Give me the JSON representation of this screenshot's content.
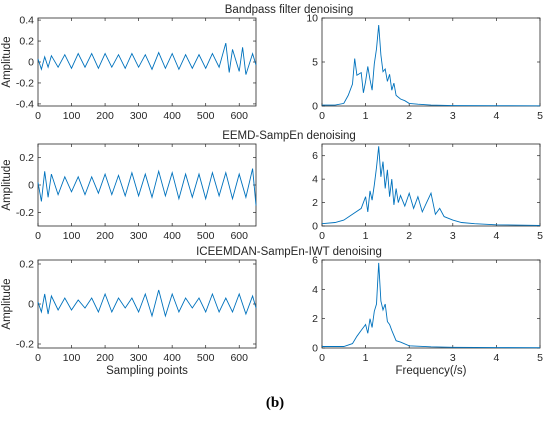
{
  "caption": "(b)",
  "chart_data": [
    {
      "type": "line",
      "title": "Bandpass filter denoising",
      "xlabel": "",
      "ylabel": "Amplitude",
      "xlim": [
        0,
        650
      ],
      "ylim": [
        -0.42,
        0.42
      ],
      "xticks": [
        "0",
        "100",
        "200",
        "300",
        "400",
        "500",
        "600"
      ],
      "yticks": [
        "0.4",
        "0.2",
        "0",
        "-0.2",
        "-0.4"
      ],
      "color": "#0072BD",
      "series": [
        {
          "values": [
            [
              0,
              0.03
            ],
            [
              10,
              -0.07
            ],
            [
              20,
              0.05
            ],
            [
              30,
              -0.05
            ],
            [
              40,
              0.06
            ],
            [
              60,
              -0.05
            ],
            [
              80,
              0.07
            ],
            [
              100,
              -0.06
            ],
            [
              120,
              0.08
            ],
            [
              140,
              -0.05
            ],
            [
              160,
              0.08
            ],
            [
              180,
              -0.06
            ],
            [
              200,
              0.08
            ],
            [
              220,
              -0.05
            ],
            [
              240,
              0.07
            ],
            [
              260,
              -0.06
            ],
            [
              280,
              0.08
            ],
            [
              300,
              -0.05
            ],
            [
              320,
              0.07
            ],
            [
              340,
              -0.07
            ],
            [
              360,
              0.09
            ],
            [
              380,
              -0.06
            ],
            [
              400,
              0.08
            ],
            [
              420,
              -0.07
            ],
            [
              440,
              0.07
            ],
            [
              460,
              -0.06
            ],
            [
              480,
              0.07
            ],
            [
              500,
              -0.06
            ],
            [
              520,
              0.08
            ],
            [
              540,
              -0.05
            ],
            [
              560,
              0.18
            ],
            [
              570,
              -0.1
            ],
            [
              580,
              0.12
            ],
            [
              600,
              -0.09
            ],
            [
              610,
              0.14
            ],
            [
              620,
              -0.12
            ],
            [
              640,
              0.08
            ],
            [
              650,
              -0.03
            ]
          ]
        }
      ]
    },
    {
      "type": "line",
      "title": "",
      "xlabel": "",
      "ylabel": "",
      "xlim": [
        0,
        5
      ],
      "ylim": [
        0,
        10
      ],
      "xticks": [
        "0",
        "1",
        "2",
        "3",
        "4",
        "5"
      ],
      "yticks": [
        "10",
        "5",
        "0"
      ],
      "color": "#0072BD",
      "series": [
        {
          "values": [
            [
              0,
              0.1
            ],
            [
              0.3,
              0.1
            ],
            [
              0.5,
              0.3
            ],
            [
              0.6,
              1.2
            ],
            [
              0.7,
              2.5
            ],
            [
              0.75,
              5.4
            ],
            [
              0.8,
              3.5
            ],
            [
              0.9,
              3.8
            ],
            [
              0.95,
              1.5
            ],
            [
              1.0,
              2.8
            ],
            [
              1.05,
              4.5
            ],
            [
              1.1,
              3.0
            ],
            [
              1.15,
              1.8
            ],
            [
              1.2,
              4.8
            ],
            [
              1.25,
              6.5
            ],
            [
              1.3,
              9.2
            ],
            [
              1.35,
              5.8
            ],
            [
              1.4,
              3.9
            ],
            [
              1.45,
              4.2
            ],
            [
              1.5,
              2.8
            ],
            [
              1.55,
              3.6
            ],
            [
              1.6,
              1.8
            ],
            [
              1.65,
              2.6
            ],
            [
              1.7,
              1.2
            ],
            [
              1.8,
              0.8
            ],
            [
              1.9,
              0.6
            ],
            [
              2.0,
              0.3
            ],
            [
              2.2,
              0.2
            ],
            [
              2.5,
              0.1
            ],
            [
              3.0,
              0.05
            ],
            [
              4.0,
              0.03
            ],
            [
              5.0,
              0.02
            ]
          ]
        }
      ]
    },
    {
      "type": "line",
      "title": "EEMD-SampEn denoising",
      "xlabel": "",
      "ylabel": "Amplitude",
      "xlim": [
        0,
        650
      ],
      "ylim": [
        -0.3,
        0.3
      ],
      "xticks": [
        "0",
        "100",
        "200",
        "300",
        "400",
        "500",
        "600"
      ],
      "yticks": [
        "0.2",
        "0",
        "-0.2"
      ],
      "color": "#0072BD",
      "series": [
        {
          "values": [
            [
              0,
              0.02
            ],
            [
              10,
              -0.12
            ],
            [
              20,
              0.1
            ],
            [
              30,
              -0.09
            ],
            [
              40,
              0.08
            ],
            [
              60,
              -0.07
            ],
            [
              80,
              0.06
            ],
            [
              100,
              -0.05
            ],
            [
              120,
              0.06
            ],
            [
              140,
              -0.07
            ],
            [
              160,
              0.06
            ],
            [
              180,
              -0.06
            ],
            [
              200,
              0.08
            ],
            [
              220,
              -0.07
            ],
            [
              240,
              0.07
            ],
            [
              260,
              -0.08
            ],
            [
              280,
              0.09
            ],
            [
              300,
              -0.08
            ],
            [
              320,
              0.08
            ],
            [
              340,
              -0.09
            ],
            [
              360,
              0.1
            ],
            [
              380,
              -0.08
            ],
            [
              400,
              0.09
            ],
            [
              420,
              -0.1
            ],
            [
              440,
              0.08
            ],
            [
              460,
              -0.09
            ],
            [
              480,
              0.08
            ],
            [
              500,
              -0.1
            ],
            [
              520,
              0.09
            ],
            [
              540,
              -0.08
            ],
            [
              560,
              0.09
            ],
            [
              580,
              -0.1
            ],
            [
              600,
              0.08
            ],
            [
              620,
              -0.09
            ],
            [
              640,
              0.12
            ],
            [
              650,
              -0.15
            ]
          ]
        }
      ]
    },
    {
      "type": "line",
      "title": "",
      "xlabel": "",
      "ylabel": "",
      "xlim": [
        0,
        5
      ],
      "ylim": [
        0,
        7
      ],
      "xticks": [
        "0",
        "1",
        "2",
        "3",
        "4",
        "5"
      ],
      "yticks": [
        "6",
        "4",
        "2",
        "0"
      ],
      "color": "#0072BD",
      "series": [
        {
          "values": [
            [
              0,
              0.2
            ],
            [
              0.3,
              0.3
            ],
            [
              0.5,
              0.5
            ],
            [
              0.7,
              1.0
            ],
            [
              0.9,
              1.5
            ],
            [
              1.0,
              2.5
            ],
            [
              1.05,
              1.2
            ],
            [
              1.1,
              3.0
            ],
            [
              1.15,
              2.2
            ],
            [
              1.2,
              3.5
            ],
            [
              1.25,
              5.0
            ],
            [
              1.3,
              6.8
            ],
            [
              1.35,
              4.2
            ],
            [
              1.4,
              5.5
            ],
            [
              1.45,
              3.2
            ],
            [
              1.5,
              4.8
            ],
            [
              1.55,
              2.5
            ],
            [
              1.6,
              4.0
            ],
            [
              1.65,
              1.8
            ],
            [
              1.7,
              3.2
            ],
            [
              1.75,
              2.0
            ],
            [
              1.8,
              2.6
            ],
            [
              1.9,
              1.7
            ],
            [
              2.0,
              2.8
            ],
            [
              2.1,
              1.5
            ],
            [
              2.2,
              2.5
            ],
            [
              2.3,
              1.2
            ],
            [
              2.4,
              2.0
            ],
            [
              2.5,
              2.8
            ],
            [
              2.6,
              1.0
            ],
            [
              2.7,
              1.5
            ],
            [
              2.8,
              0.8
            ],
            [
              3.0,
              0.5
            ],
            [
              3.2,
              0.3
            ],
            [
              3.5,
              0.2
            ],
            [
              4.0,
              0.1
            ],
            [
              5.0,
              0.05
            ]
          ]
        }
      ]
    },
    {
      "type": "line",
      "title": "ICEEMDAN-SampEn-IWT denoising",
      "xlabel": "Sampling points",
      "ylabel": "Amplitude",
      "xlim": [
        0,
        650
      ],
      "ylim": [
        -0.22,
        0.22
      ],
      "xticks": [
        "0",
        "100",
        "200",
        "300",
        "400",
        "500",
        "600"
      ],
      "yticks": [
        "0.2",
        "0",
        "-0.2"
      ],
      "color": "#0072BD",
      "series": [
        {
          "values": [
            [
              0,
              0.01
            ],
            [
              10,
              -0.04
            ],
            [
              20,
              0.05
            ],
            [
              30,
              -0.05
            ],
            [
              40,
              0.04
            ],
            [
              60,
              -0.03
            ],
            [
              80,
              0.03
            ],
            [
              100,
              -0.03
            ],
            [
              120,
              0.02
            ],
            [
              140,
              -0.02
            ],
            [
              160,
              0.03
            ],
            [
              180,
              -0.04
            ],
            [
              200,
              0.05
            ],
            [
              220,
              -0.04
            ],
            [
              240,
              0.03
            ],
            [
              260,
              -0.02
            ],
            [
              280,
              0.03
            ],
            [
              300,
              -0.04
            ],
            [
              320,
              0.05
            ],
            [
              340,
              -0.06
            ],
            [
              360,
              0.07
            ],
            [
              380,
              -0.06
            ],
            [
              400,
              0.05
            ],
            [
              420,
              -0.04
            ],
            [
              440,
              0.03
            ],
            [
              460,
              -0.02
            ],
            [
              480,
              0.03
            ],
            [
              500,
              -0.04
            ],
            [
              520,
              0.05
            ],
            [
              540,
              -0.04
            ],
            [
              560,
              0.03
            ],
            [
              580,
              -0.04
            ],
            [
              600,
              0.05
            ],
            [
              620,
              -0.05
            ],
            [
              640,
              0.04
            ],
            [
              650,
              -0.02
            ]
          ]
        }
      ]
    },
    {
      "type": "line",
      "title": "",
      "xlabel": "Frequency(/s)",
      "ylabel": "",
      "xlim": [
        0,
        5
      ],
      "ylim": [
        0,
        6
      ],
      "xticks": [
        "0",
        "1",
        "2",
        "3",
        "4",
        "5"
      ],
      "yticks": [
        "6",
        "4",
        "2",
        "0"
      ],
      "color": "#0072BD",
      "series": [
        {
          "values": [
            [
              0,
              0.1
            ],
            [
              0.5,
              0.1
            ],
            [
              0.7,
              0.3
            ],
            [
              0.8,
              0.8
            ],
            [
              0.9,
              1.2
            ],
            [
              1.0,
              1.6
            ],
            [
              1.05,
              1.0
            ],
            [
              1.1,
              2.0
            ],
            [
              1.15,
              1.4
            ],
            [
              1.2,
              2.5
            ],
            [
              1.25,
              3.0
            ],
            [
              1.3,
              5.8
            ],
            [
              1.35,
              3.2
            ],
            [
              1.4,
              2.6
            ],
            [
              1.45,
              3.0
            ],
            [
              1.5,
              1.8
            ],
            [
              1.55,
              1.6
            ],
            [
              1.6,
              1.2
            ],
            [
              1.7,
              0.5
            ],
            [
              1.8,
              0.4
            ],
            [
              2.0,
              0.15
            ],
            [
              2.5,
              0.08
            ],
            [
              3.0,
              0.05
            ],
            [
              4.0,
              0.03
            ],
            [
              5.0,
              0.02
            ]
          ]
        }
      ]
    }
  ]
}
